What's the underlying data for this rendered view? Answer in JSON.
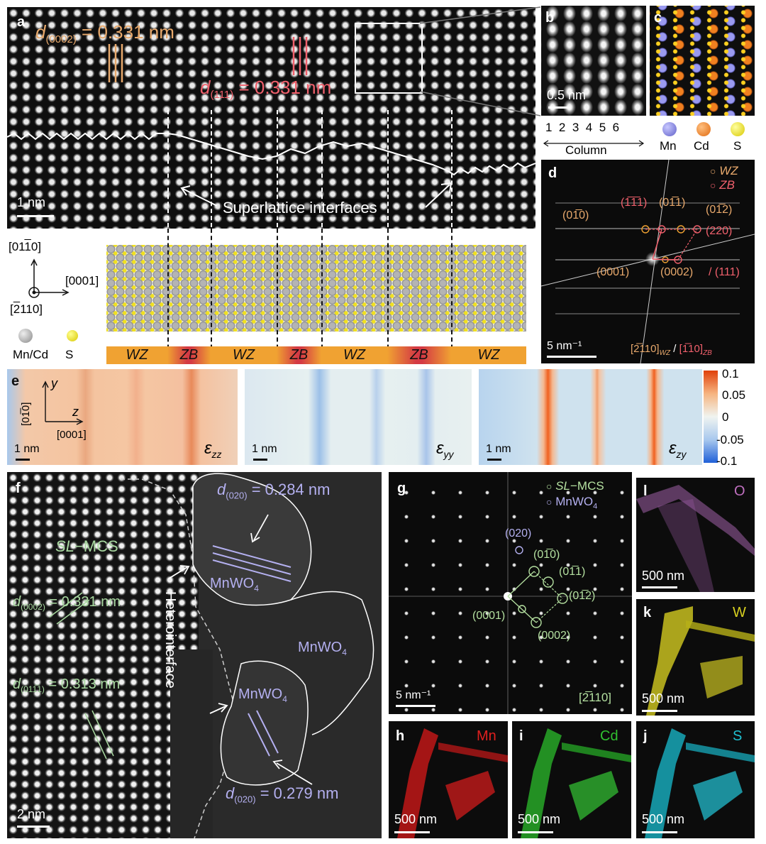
{
  "panel_labels": {
    "a": "a",
    "b": "b",
    "c": "c",
    "d": "d",
    "e": "e",
    "f": "f",
    "g": "g",
    "h": "h",
    "i": "i",
    "j": "j",
    "k": "k",
    "l": "l"
  },
  "a": {
    "d_wz_label": "d",
    "d_wz_sub": "(0002)",
    "d_wz_value": " = 0.331 nm",
    "d_zb_label": "d",
    "d_zb_sub": "(111)",
    "d_zb_value": " = 0.331 nm",
    "scale": "1 nm",
    "interfaces": "Superlattice interfaces",
    "axis_up": "[01",
    "axis_up_bar": "1",
    "axis_up_end": "0]",
    "axis_right": "[0001]",
    "axis_view": "[",
    "axis_view_bar": "2",
    "axis_view_end": "110]",
    "atom_mncd": "Mn/Cd",
    "atom_s": "S",
    "stack": [
      "WZ",
      "ZB",
      "WZ",
      "ZB",
      "WZ",
      "ZB",
      "WZ"
    ]
  },
  "b": {
    "scale": "0.5 nm",
    "columns": [
      "1",
      "2",
      "3",
      "4",
      "5",
      "6"
    ],
    "column_label": "Column"
  },
  "c": {
    "legend": [
      "Mn",
      "Cd",
      "S"
    ]
  },
  "d": {
    "legend_wz": "WZ",
    "legend_zb": "ZB",
    "spots": [
      "(01̅0)",
      "(1̅1̅1)",
      "(01̅1)",
      "(01̅2)",
      "(220)",
      "(0001)",
      "(0002)",
      "/ (111)"
    ],
    "scale": "5 nm⁻¹",
    "zone": "[2̅110]",
    "zone_wz": "WZ",
    "zone_sep": " / ",
    "zone2": "[1̅10]",
    "zone_zb": "ZB"
  },
  "e": {
    "axis_y": "y",
    "axis_z": "z",
    "axis_y_dir": "[01̅0]",
    "axis_z_dir": "[0001]",
    "scale": "1 nm",
    "maps": [
      "ε",
      "ε",
      "ε"
    ],
    "map_subs": [
      "zz",
      "yy",
      "zy"
    ],
    "colorbar_ticks": [
      "0.1",
      "0.05",
      "0",
      "-0.05",
      "-0.1"
    ]
  },
  "f": {
    "d1_value": " = 0.284 nm",
    "d1_sub": "(020)",
    "d2_value": " = 0.279 nm",
    "d2_sub": "(020)",
    "d3_value": "= 0.331 nm",
    "d3_sub": "(0002)",
    "d4_value": " = 0.313 nm",
    "d4_sub": "(011̅1)",
    "sl_label": "SL",
    "mcs_label": "−MCS",
    "phase": "MnWO",
    "phase_sub": "4",
    "heterointerface": "Heterointerface",
    "scale": "2 nm"
  },
  "g": {
    "legend_sl": "SL",
    "legend_mcs": "−MCS",
    "legend_mnwo": "MnWO",
    "legend_mnwo_sub": "4",
    "spots": [
      "(020)",
      "(01̅0)",
      "(01̅1)",
      "(01̅2)",
      "(0001)",
      "(0002)"
    ],
    "scale": "5 nm⁻¹",
    "zone": "[2̅110]"
  },
  "maps": {
    "h": {
      "element": "Mn",
      "scale": "500 nm",
      "color": "#e0201f"
    },
    "i": {
      "element": "Cd",
      "scale": "500 nm",
      "color": "#30c030"
    },
    "j": {
      "element": "S",
      "scale": "500 nm",
      "color": "#20c0d0"
    },
    "k": {
      "element": "W",
      "scale": "500 nm",
      "color": "#d8d020"
    },
    "l": {
      "element": "O",
      "scale": "500 nm",
      "color": "#c070c0"
    }
  },
  "colors": {
    "wz": "#f0a232",
    "zb": "#d43a44",
    "wz_text": "#e8a96c",
    "zb_text": "#f0606c",
    "mn": "#8a8ae8",
    "cd": "#e87a20",
    "s": "#e8e020",
    "f_green": "#a8d8a0",
    "f_violet": "#b4b0f0"
  }
}
